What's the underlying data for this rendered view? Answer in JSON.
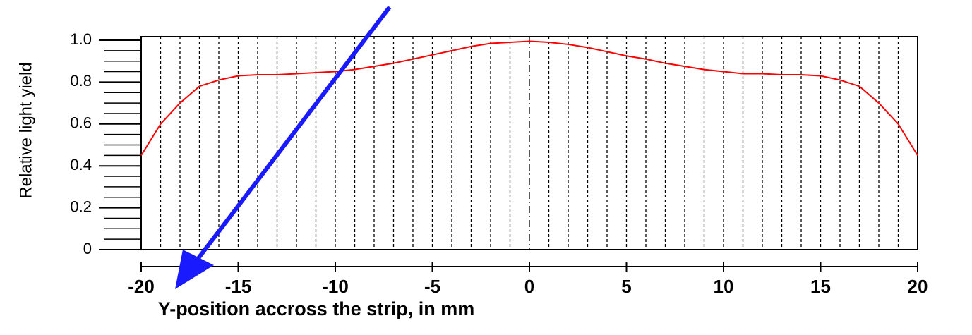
{
  "chart_data": {
    "type": "line",
    "x_label": "Y-position accross the strip, in mm",
    "y_label": "Relative light yield",
    "x": [
      -20,
      -19,
      -18,
      -17,
      -16,
      -15,
      -14,
      -13,
      -12,
      -11,
      -10,
      -9,
      -8,
      -7,
      -6,
      -5,
      -4,
      -3,
      -2,
      -1,
      0,
      1,
      2,
      3,
      4,
      5,
      6,
      7,
      8,
      9,
      10,
      11,
      12,
      13,
      14,
      15,
      16,
      17,
      18,
      19,
      20
    ],
    "series": [
      {
        "color": "#ff0000",
        "values": [
          0.45,
          0.6,
          0.7,
          0.78,
          0.81,
          0.83,
          0.835,
          0.835,
          0.84,
          0.845,
          0.85,
          0.86,
          0.875,
          0.89,
          0.91,
          0.93,
          0.95,
          0.97,
          0.985,
          0.99,
          0.995,
          0.99,
          0.98,
          0.965,
          0.945,
          0.925,
          0.91,
          0.89,
          0.875,
          0.86,
          0.85,
          0.84,
          0.84,
          0.835,
          0.835,
          0.83,
          0.81,
          0.78,
          0.7,
          0.6,
          0.45
        ]
      }
    ],
    "xlim": [
      -20,
      20
    ],
    "ylim": [
      0,
      1
    ],
    "xticks": [
      -20,
      -15,
      -10,
      -5,
      0,
      5,
      10,
      15,
      20
    ],
    "yticks": [
      0,
      0.2,
      0.4,
      0.6,
      0.8,
      {
        "value": 1,
        "label": "1.0"
      }
    ],
    "y_minor_ticks": [
      0.05,
      0.1,
      0.15,
      0.25,
      0.3,
      0.35,
      0.45,
      0.5,
      0.55,
      0.65,
      0.7,
      0.75,
      0.85,
      0.9,
      0.95
    ],
    "x_grid": [
      -19,
      -18,
      -17,
      -16,
      -15,
      -14,
      -13,
      -12,
      -11,
      -10,
      -9,
      -8,
      -7,
      -6,
      -5,
      -4,
      -3,
      -2,
      -1,
      0,
      1,
      2,
      3,
      4,
      5,
      6,
      7,
      8,
      9,
      10,
      11,
      12,
      13,
      14,
      15,
      16,
      17,
      18,
      19
    ],
    "grid": true
  }
}
